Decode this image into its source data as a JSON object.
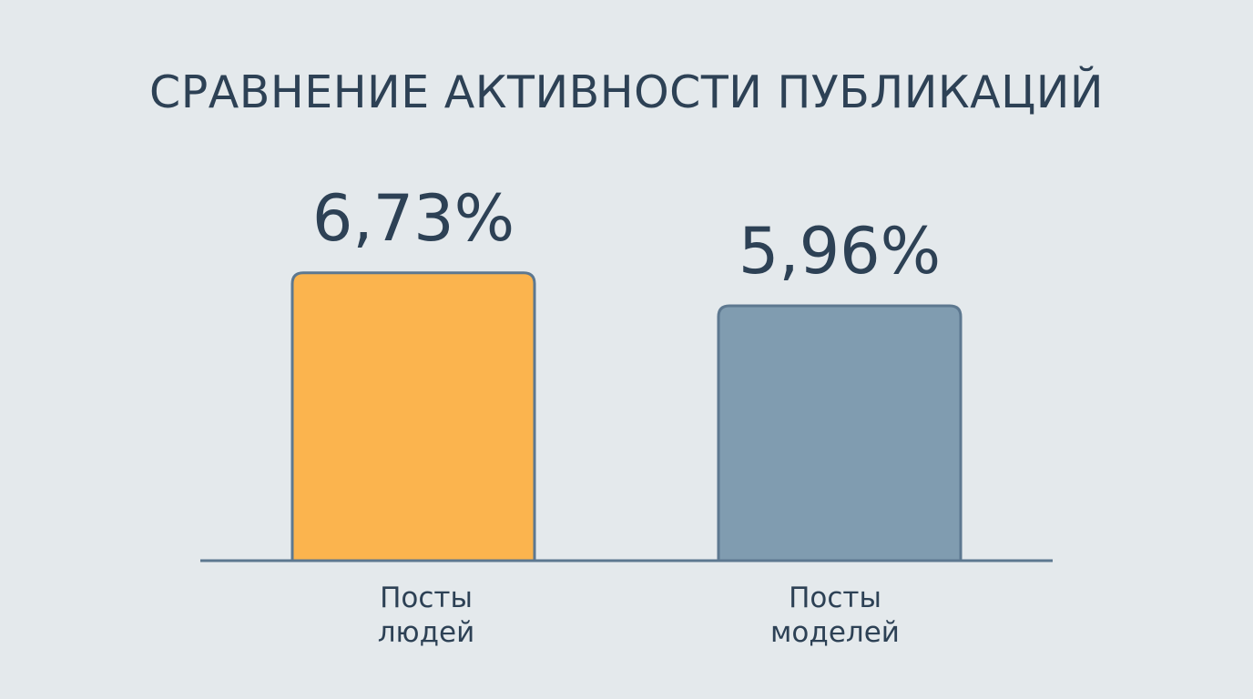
{
  "chart_data": {
    "type": "bar",
    "title": "СРАВНЕНИЕ АКТИВНОСТИ ПУБЛИКАЦИЙ",
    "categories": [
      [
        "Посты",
        "людей"
      ],
      [
        "Посты",
        "моделей"
      ]
    ],
    "values": [
      6.73,
      5.96
    ],
    "value_labels": [
      "6,73%",
      "5,96%"
    ],
    "unit": "%",
    "ylim": [
      0,
      8.3
    ],
    "grid": false,
    "legend": "none",
    "colors": {
      "bars": [
        "#fbb44e",
        "#809cb0"
      ],
      "bar_stroke": "#5d7890",
      "axis": "#5d7890",
      "text": "#2d4155",
      "background": "#e4e9ec"
    }
  }
}
